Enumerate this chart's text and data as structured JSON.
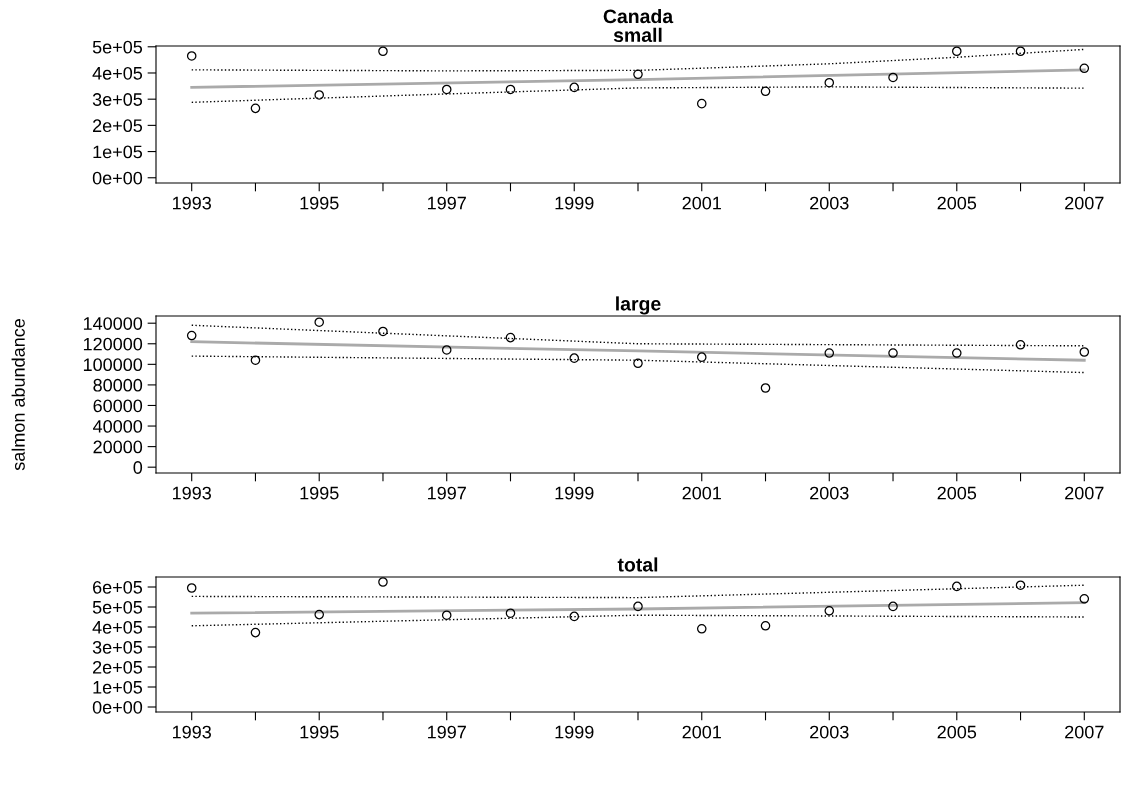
{
  "chart_data": [
    {
      "type": "scatter",
      "title": "Canada",
      "subtitle": "small",
      "x": [
        1993,
        1994,
        1995,
        1996,
        1997,
        1998,
        1999,
        2000,
        2001,
        2002,
        2003,
        2004,
        2005,
        2006,
        2007
      ],
      "xlim": [
        1992.44,
        2007.56
      ],
      "xticks": [
        1993,
        {
          "value": 1994,
          "label": null
        },
        1995,
        {
          "value": 1996,
          "label": null
        },
        1997,
        {
          "value": 1998,
          "label": null
        },
        1999,
        {
          "value": 2000,
          "label": null
        },
        2001,
        {
          "value": 2002,
          "label": null
        },
        2003,
        {
          "value": 2004,
          "label": null
        },
        2005,
        {
          "value": 2006,
          "label": null
        },
        2007
      ],
      "ylim": [
        -20000,
        503000
      ],
      "yticks": [
        {
          "value": 0,
          "label": "0e+00"
        },
        {
          "value": 100000,
          "label": "1e+05"
        },
        {
          "value": 200000,
          "label": "2e+05"
        },
        {
          "value": 300000,
          "label": "3e+05"
        },
        {
          "value": 400000,
          "label": "4e+05"
        },
        {
          "value": 500000,
          "label": "5e+05"
        }
      ],
      "grid": false,
      "legend": false,
      "series": [
        {
          "marker": "circle",
          "color": "#000000",
          "values": [
            465000,
            265000,
            316000,
            483000,
            337000,
            337000,
            345000,
            395000,
            283000,
            330000,
            363000,
            383000,
            483000,
            483000,
            418000
          ]
        },
        {
          "type": "line",
          "marker": "none",
          "color": "#aaaaaa",
          "line_style": "solid",
          "x": [
            1993,
            2000,
            2007
          ],
          "values": [
            345000,
            375000,
            412000
          ]
        },
        {
          "type": "line",
          "marker": "none",
          "color": "#000000",
          "line_style": "dotted",
          "x": [
            1993,
            1997,
            2000,
            2003,
            2005,
            2007
          ],
          "values": [
            412000,
            408000,
            410000,
            435000,
            460000,
            490000
          ]
        },
        {
          "type": "line",
          "marker": "none",
          "color": "#000000",
          "line_style": "dotted",
          "x": [
            1993,
            1997,
            2000,
            2003,
            2007
          ],
          "values": [
            288000,
            320000,
            343000,
            347000,
            342000
          ]
        }
      ]
    },
    {
      "type": "scatter",
      "title": "large",
      "ylabel": "salmon abundance",
      "x": [
        1993,
        1994,
        1995,
        1996,
        1997,
        1998,
        1999,
        2000,
        2001,
        2002,
        2003,
        2004,
        2005,
        2006,
        2007
      ],
      "xlim": [
        1992.44,
        2007.56
      ],
      "xticks": [
        1993,
        {
          "value": 1994,
          "label": null
        },
        1995,
        {
          "value": 1996,
          "label": null
        },
        1997,
        {
          "value": 1998,
          "label": null
        },
        1999,
        {
          "value": 2000,
          "label": null
        },
        2001,
        {
          "value": 2002,
          "label": null
        },
        2003,
        {
          "value": 2004,
          "label": null
        },
        2005,
        {
          "value": 2006,
          "label": null
        },
        2007
      ],
      "ylim": [
        -5660,
        147000
      ],
      "yticks": [
        0,
        20000,
        40000,
        60000,
        80000,
        100000,
        120000,
        140000
      ],
      "grid": false,
      "legend": false,
      "series": [
        {
          "marker": "circle",
          "color": "#000000",
          "values": [
            128000,
            104000,
            141000,
            132000,
            114000,
            126000,
            106000,
            101000,
            107000,
            77000,
            111000,
            111000,
            111000,
            119000,
            112000
          ]
        },
        {
          "type": "line",
          "marker": "none",
          "color": "#aaaaaa",
          "line_style": "solid",
          "x": [
            1993,
            2000,
            2007
          ],
          "values": [
            122000,
            113000,
            104000
          ]
        },
        {
          "type": "line",
          "marker": "none",
          "color": "#000000",
          "line_style": "dotted",
          "x": [
            1993,
            2000,
            2007
          ],
          "values": [
            138000,
            120000,
            118000
          ]
        },
        {
          "type": "line",
          "marker": "none",
          "color": "#000000",
          "line_style": "dotted",
          "x": [
            1993,
            2000,
            2007
          ],
          "values": [
            108000,
            104000,
            92000
          ]
        }
      ]
    },
    {
      "type": "scatter",
      "title": "total",
      "x": [
        1993,
        1994,
        1995,
        1996,
        1997,
        1998,
        1999,
        2000,
        2001,
        2002,
        2003,
        2004,
        2005,
        2006,
        2007
      ],
      "xlim": [
        1992.44,
        2007.56
      ],
      "xticks": [
        1993,
        {
          "value": 1994,
          "label": null
        },
        1995,
        {
          "value": 1996,
          "label": null
        },
        1997,
        {
          "value": 1998,
          "label": null
        },
        1999,
        {
          "value": 2000,
          "label": null
        },
        2001,
        {
          "value": 2002,
          "label": null
        },
        2003,
        {
          "value": 2004,
          "label": null
        },
        2005,
        {
          "value": 2006,
          "label": null
        },
        2007
      ],
      "ylim": [
        -25000,
        650000
      ],
      "yticks": [
        {
          "value": 0,
          "label": "0e+00"
        },
        {
          "value": 100000,
          "label": "1e+05"
        },
        {
          "value": 200000,
          "label": "2e+05"
        },
        {
          "value": 300000,
          "label": "3e+05"
        },
        {
          "value": 400000,
          "label": "4e+05"
        },
        {
          "value": 500000,
          "label": "5e+05"
        },
        {
          "value": 600000,
          "label": "6e+05"
        }
      ],
      "grid": false,
      "legend": false,
      "series": [
        {
          "marker": "circle",
          "color": "#000000",
          "values": [
            595000,
            372000,
            462000,
            625000,
            459000,
            469000,
            453000,
            503000,
            391000,
            406000,
            481000,
            503000,
            603000,
            609000,
            541000
          ]
        },
        {
          "type": "line",
          "marker": "none",
          "color": "#aaaaaa",
          "line_style": "solid",
          "x": [
            1993,
            2000,
            2007
          ],
          "values": [
            469000,
            490000,
            522000
          ]
        },
        {
          "type": "line",
          "marker": "none",
          "color": "#000000",
          "line_style": "dotted",
          "x": [
            1993,
            2000,
            2007
          ],
          "values": [
            553000,
            547000,
            609000
          ]
        },
        {
          "type": "line",
          "marker": "none",
          "color": "#000000",
          "line_style": "dotted",
          "x": [
            1993,
            2000,
            2007
          ],
          "values": [
            406000,
            459000,
            450000
          ]
        }
      ]
    }
  ]
}
